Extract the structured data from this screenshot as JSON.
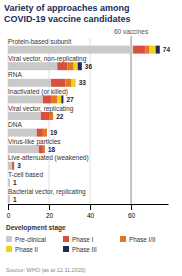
{
  "chart_data": {
    "type": "bar",
    "orientation": "horizontal",
    "stacked": true,
    "title": "Variety of approaches among\nCOVID-19 vaccine candidates",
    "categories": [
      "Protein-based subunit",
      "Viral vector, non-replicating",
      "RNA",
      "Inactivated (or killed)",
      "Viral vector, replicating",
      "DNA",
      "Virus-like particles",
      "Live-attenuated (weakened)",
      "T-cell based",
      "Bacterial vector, replicating"
    ],
    "series": [
      {
        "name": "Pre-clinical",
        "color": "#c9c9c9",
        "values": [
          61,
          24,
          21,
          17,
          16,
          14,
          15,
          2,
          1,
          1
        ]
      },
      {
        "name": "Phase I",
        "color": "#d94f3d",
        "values": [
          6,
          5,
          7,
          4,
          4,
          3,
          2,
          1,
          0,
          0
        ]
      },
      {
        "name": "Phase I/II",
        "color": "#e07820",
        "values": [
          2,
          3,
          3,
          3,
          2,
          2,
          1,
          0,
          0,
          0
        ]
      },
      {
        "name": "Phase II",
        "color": "#f0d020",
        "values": [
          3,
          2,
          2,
          2,
          0,
          0,
          0,
          0,
          0,
          0
        ]
      },
      {
        "name": "Phase III",
        "color": "#1a2d5a",
        "values": [
          2,
          2,
          0,
          1,
          0,
          0,
          0,
          0,
          0,
          0
        ]
      }
    ],
    "totals": [
      74,
      36,
      33,
      27,
      22,
      19,
      18,
      3,
      1,
      1
    ],
    "annotations": [
      {
        "text": "60 vaccines",
        "x": 60
      }
    ],
    "legend_title": "Development stage",
    "legend": "bottom",
    "source": "Source: WHO (as at 12.11.2020)",
    "xlim": [
      0,
      78
    ],
    "xticks": [
      0,
      20,
      40,
      60
    ],
    "grid": true
  }
}
